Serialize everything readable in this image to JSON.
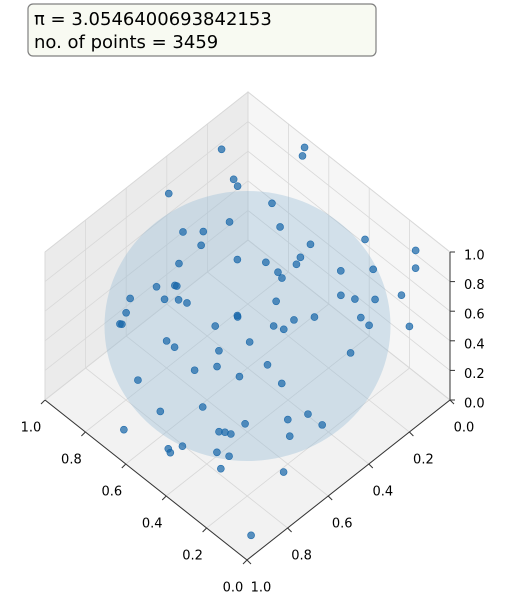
{
  "chart_data": {
    "type": "scatter3d",
    "annotations": [
      "π = 3.0546400693842153",
      "no. of points = 3459"
    ],
    "color": "#1565a8",
    "x": [
      0.12,
      0.85,
      0.47,
      0.33,
      0.91,
      0.06,
      0.58,
      0.72,
      0.24,
      0.39,
      0.95,
      0.15,
      0.66,
      0.81,
      0.03,
      0.52,
      0.29,
      0.77,
      0.44,
      0.61,
      0.18,
      0.88,
      0.36,
      0.09,
      0.7,
      0.55,
      0.97,
      0.21,
      0.63,
      0.41,
      0.84,
      0.27,
      0.5,
      0.13,
      0.74,
      0.92,
      0.31,
      0.68,
      0.05,
      0.46,
      0.59,
      0.82,
      0.17,
      0.38,
      0.99,
      0.25,
      0.64,
      0.11,
      0.78,
      0.53,
      0.34,
      0.87,
      0.02,
      0.49,
      0.71,
      0.23,
      0.94,
      0.42,
      0.6,
      0.08,
      0.76,
      0.3,
      0.57,
      0.89,
      0.14,
      0.45,
      0.67,
      0.2,
      0.83,
      0.37,
      0.96,
      0.26,
      0.51,
      0.73,
      0.07,
      0.62,
      0.4,
      0.86,
      0.19,
      0.54
    ],
    "y": [
      0.67,
      0.22,
      0.91,
      0.05,
      0.48,
      0.76,
      0.33,
      0.14,
      0.59,
      0.87,
      0.41,
      0.02,
      0.7,
      0.28,
      0.95,
      0.53,
      0.11,
      0.64,
      0.39,
      0.82,
      0.19,
      0.57,
      0.73,
      0.08,
      0.46,
      0.99,
      0.25,
      0.61,
      0.36,
      0.13,
      0.79,
      0.5,
      0.04,
      0.88,
      0.31,
      0.68,
      0.16,
      0.93,
      0.44,
      0.21,
      0.75,
      0.58,
      0.07,
      0.84,
      0.35,
      0.62,
      0.1,
      0.97,
      0.27,
      0.52,
      0.8,
      0.43,
      0.18,
      0.66,
      0.01,
      0.9,
      0.38,
      0.72,
      0.24,
      0.55,
      0.86,
      0.12,
      0.47,
      0.69,
      0.3,
      0.94,
      0.06,
      0.6,
      0.4,
      0.78,
      0.17,
      0.85,
      0.34,
      0.03,
      0.63,
      0.26,
      0.92,
      0.49,
      0.71,
      0.15
    ],
    "z": [
      0.35,
      0.81,
      0.12,
      0.58,
      0.93,
      0.27,
      0.66,
      0.04,
      0.49,
      0.72,
      0.19,
      0.87,
      0.4,
      0.63,
      0.08,
      0.96,
      0.31,
      0.54,
      0.77,
      0.15,
      0.69,
      0.43,
      0.02,
      0.88,
      0.24,
      0.61,
      0.36,
      0.91,
      0.1,
      0.57,
      0.46,
      0.79,
      0.21,
      0.65,
      0.98,
      0.33,
      0.52,
      0.07,
      0.74,
      0.29,
      0.85,
      0.14,
      0.6,
      0.45,
      0.23,
      0.9,
      0.38,
      0.7,
      0.01,
      0.56,
      0.83,
      0.18,
      0.67,
      0.41,
      0.95,
      0.26,
      0.53,
      0.11,
      0.78,
      0.34,
      0.62,
      0.89,
      0.05,
      0.47,
      0.73,
      0.2,
      0.99,
      0.3,
      0.58,
      0.09,
      0.84,
      0.42,
      0.68,
      0.16,
      0.51,
      0.94,
      0.25,
      0.37,
      0.8,
      0.63
    ],
    "xlim": [
      0,
      1
    ],
    "ylim": [
      0,
      1
    ],
    "zlim": [
      0,
      1
    ],
    "xticks": [
      {
        "value": 0,
        "label": "0.0"
      },
      {
        "value": 0.2,
        "label": "0.2"
      },
      {
        "value": 0.4,
        "label": "0.4"
      },
      {
        "value": 0.6,
        "label": "0.6"
      },
      {
        "value": 0.8,
        "label": "0.8"
      },
      {
        "value": 1,
        "label": "1.0"
      }
    ],
    "yticks": [
      {
        "value": 0,
        "label": "0.0"
      },
      {
        "value": 0.2,
        "label": "0.2"
      },
      {
        "value": 0.4,
        "label": "0.4"
      },
      {
        "value": 0.6,
        "label": "0.6"
      },
      {
        "value": 0.8,
        "label": "0.8"
      },
      {
        "value": 1,
        "label": "1.0"
      }
    ],
    "zticks": [
      {
        "value": 0,
        "label": "0.0"
      },
      {
        "value": 0.2,
        "label": "0.2"
      },
      {
        "value": 0.4,
        "label": "0.4"
      },
      {
        "value": 0.6,
        "label": "0.6"
      },
      {
        "value": 0.8,
        "label": "0.8"
      },
      {
        "value": 1,
        "label": "1.0"
      }
    ],
    "grid": true
  }
}
